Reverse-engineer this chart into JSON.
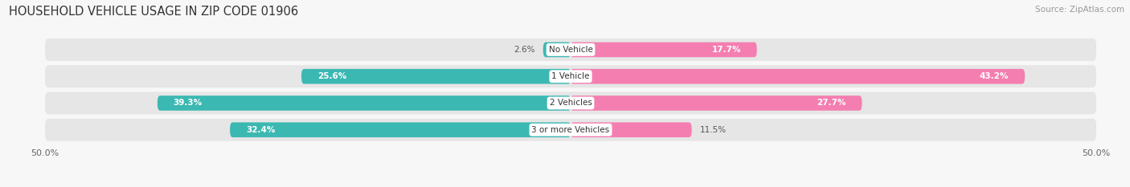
{
  "title": "HOUSEHOLD VEHICLE USAGE IN ZIP CODE 01906",
  "source": "Source: ZipAtlas.com",
  "categories": [
    "No Vehicle",
    "1 Vehicle",
    "2 Vehicles",
    "3 or more Vehicles"
  ],
  "owner_values": [
    2.6,
    25.6,
    39.3,
    32.4
  ],
  "renter_values": [
    17.7,
    43.2,
    27.7,
    11.5
  ],
  "owner_color": "#3bb8b2",
  "renter_color": "#f47eb0",
  "xlim": 50.0,
  "background_color": "#f7f7f7",
  "bar_background": "#e6e6e6",
  "title_fontsize": 10.5,
  "source_fontsize": 7.5,
  "axis_fontsize": 8,
  "bar_label_fontsize": 7.5,
  "category_fontsize": 7.5,
  "legend_fontsize": 8
}
